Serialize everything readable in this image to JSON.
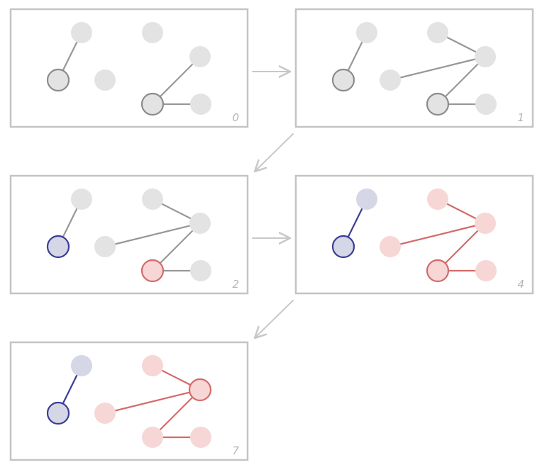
{
  "colors": {
    "background": "#ffffff",
    "frame": "#c4c4c4",
    "arrow": "#c8c8c8",
    "label": "#b4b4b4",
    "state": {
      "idle": {
        "fill": "#e3e3e3",
        "stroke": "#8c8c8c",
        "edge": "#979797"
      },
      "blue": {
        "fill": "#d5d6e6",
        "stroke": "#3c3c96",
        "edge": "#3c3c96"
      },
      "red": {
        "fill": "#f7d6d6",
        "stroke": "#d46a6a",
        "edge": "#d46a6a"
      }
    }
  },
  "graph": {
    "nodes": [
      "a",
      "b",
      "c",
      "d",
      "e",
      "f",
      "g",
      "h"
    ],
    "edges": [
      [
        "a",
        "b"
      ],
      [
        "d",
        "e"
      ],
      [
        "e",
        "g"
      ],
      [
        "g",
        "h"
      ],
      [
        "c",
        "e"
      ]
    ]
  },
  "panels": [
    {
      "label": "0",
      "edges": [
        [
          "a",
          "b"
        ],
        [
          "e",
          "g"
        ],
        [
          "g",
          "h"
        ]
      ],
      "node_state": {
        "a": "idle",
        "b": "idle",
        "c": "idle",
        "d": "idle",
        "e": "idle",
        "f": "idle",
        "g": "idle",
        "h": "idle"
      },
      "outlined": [
        "b",
        "g"
      ]
    },
    {
      "label": "1",
      "edges": [
        [
          "a",
          "b"
        ],
        [
          "d",
          "e"
        ],
        [
          "e",
          "g"
        ],
        [
          "g",
          "h"
        ],
        [
          "c",
          "e"
        ]
      ],
      "node_state": {
        "a": "idle",
        "b": "idle",
        "c": "idle",
        "d": "idle",
        "e": "idle",
        "f": "idle",
        "g": "idle",
        "h": "idle"
      },
      "outlined": [
        "b",
        "g"
      ]
    },
    {
      "label": "2",
      "edges": [
        [
          "a",
          "b"
        ],
        [
          "d",
          "e"
        ],
        [
          "e",
          "g"
        ],
        [
          "g",
          "h"
        ],
        [
          "c",
          "e"
        ]
      ],
      "node_state": {
        "a": "idle",
        "b": "blue",
        "c": "idle",
        "d": "idle",
        "e": "idle",
        "f": "idle",
        "g": "red",
        "h": "idle"
      },
      "outlined": [
        "b",
        "g"
      ]
    },
    {
      "label": "4",
      "edges": [
        [
          "a",
          "b"
        ],
        [
          "d",
          "e"
        ],
        [
          "e",
          "g"
        ],
        [
          "g",
          "h"
        ],
        [
          "c",
          "e"
        ]
      ],
      "node_state": {
        "a": "blue",
        "b": "blue",
        "c": "red",
        "d": "red",
        "e": "red",
        "f": "red",
        "g": "red",
        "h": "red"
      },
      "outlined": [
        "b",
        "g"
      ]
    },
    {
      "label": "7",
      "edges": [
        [
          "a",
          "b"
        ],
        [
          "d",
          "e"
        ],
        [
          "e",
          "g"
        ],
        [
          "g",
          "h"
        ],
        [
          "c",
          "e"
        ]
      ],
      "node_state": {
        "a": "blue",
        "b": "blue",
        "c": "red",
        "d": "red",
        "e": "red",
        "f": "red",
        "g": "red",
        "h": "red"
      },
      "outlined": [
        "b",
        "e"
      ]
    }
  ],
  "flow": [
    [
      0,
      1
    ],
    [
      1,
      2
    ],
    [
      2,
      3
    ],
    [
      3,
      4
    ]
  ]
}
